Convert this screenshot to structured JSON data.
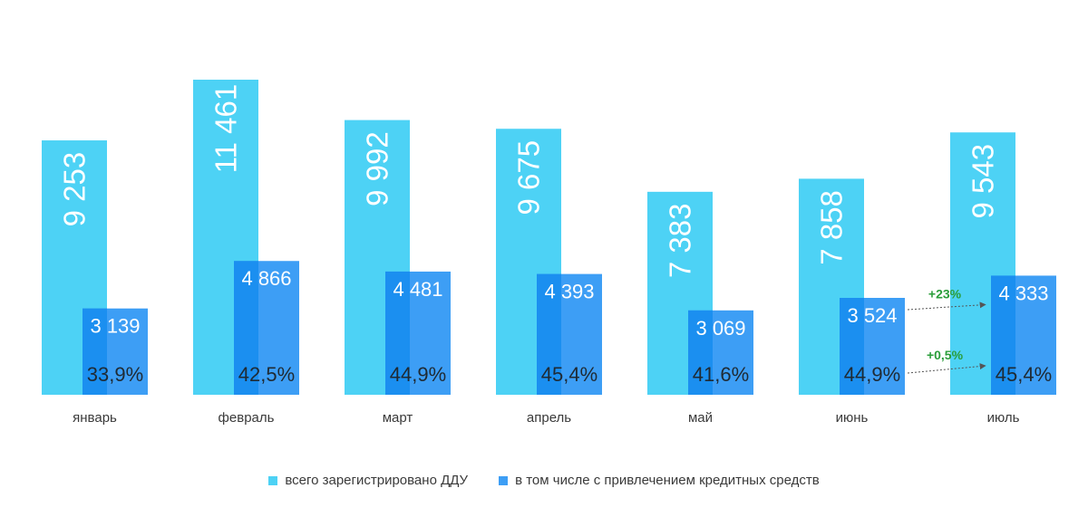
{
  "chart_data": {
    "type": "bar",
    "categories": [
      "январь",
      "февраль",
      "март",
      "апрель",
      "май",
      "июнь",
      "июль"
    ],
    "series": [
      {
        "name": "всего зарегистрировано ДДУ",
        "values": [
          9253,
          11461,
          9992,
          9675,
          7383,
          7858,
          9543
        ],
        "labels": [
          "9 253",
          "11 461",
          "9 992",
          "9 675",
          "7 383",
          "7 858",
          "9 543"
        ],
        "color": "#4dd2f5"
      },
      {
        "name": "в том числе с привлечением кредитных средств",
        "values": [
          3139,
          4866,
          4481,
          4393,
          3069,
          3524,
          4333
        ],
        "labels": [
          "3 139",
          "4 866",
          "4 481",
          "4 393",
          "3 069",
          "3 524",
          "4 333"
        ],
        "share_labels": [
          "33,9%",
          "42,5%",
          "44,9%",
          "45,4%",
          "41,6%",
          "44,9%",
          "45,4%"
        ],
        "color": "#3d9ef5",
        "color_dark": "#1b8ff0"
      }
    ],
    "annotations": [
      {
        "text": "+23%",
        "from": "июнь",
        "to": "июль",
        "target": "count",
        "color": "#2a9d3a"
      },
      {
        "text": "+0,5%",
        "from": "июнь",
        "to": "июль",
        "target": "share",
        "color": "#2a9d3a"
      }
    ],
    "legend_position": "bottom-center",
    "grid": false,
    "ylim": [
      0,
      12000
    ]
  }
}
